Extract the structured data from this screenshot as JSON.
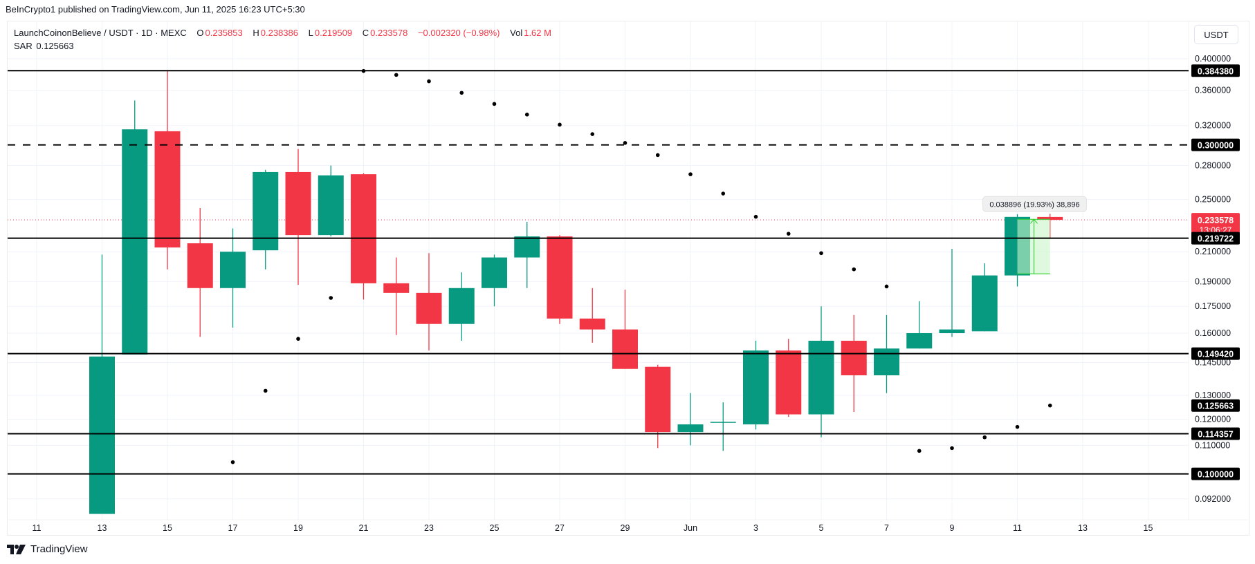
{
  "header": {
    "published": "BeInCrypto1 published on TradingView.com, Jun 11, 2025 16:23 UTC+5:30"
  },
  "legend": {
    "symbol": "LaunchCoinonBelieve / USDT · 1D · MEXC",
    "open_label": "O",
    "open": "0.235853",
    "high_label": "H",
    "high": "0.238386",
    "low_label": "L",
    "low": "0.219509",
    "close_label": "C",
    "close": "0.233578",
    "change": "−0.002320 (−0.98%)",
    "vol_label": "Vol",
    "vol": "1.62 M",
    "indicator_name": "SAR",
    "indicator_value": "0.125663"
  },
  "currency_button": "USDT",
  "measure_tooltip": "0.038896 (19.93%) 38,896",
  "footer": {
    "brand": "TradingView"
  },
  "colors": {
    "up": "#089981",
    "down": "#f23645",
    "level_line": "#000000",
    "grid": "#f0f3fa",
    "measure_fill": "#c8f5c8",
    "measure_line": "#22cc22"
  },
  "chart_data": {
    "type": "candlestick",
    "title": "LaunchCoinonBelieve / USDT · 1D · MEXC",
    "xlabel": "",
    "ylabel": "USDT",
    "y_scale": "log",
    "ylim": [
      0.086,
      0.41
    ],
    "x_tick_labels": [
      "11",
      "13",
      "15",
      "17",
      "19",
      "21",
      "23",
      "25",
      "27",
      "29",
      "Jun",
      "3",
      "5",
      "7",
      "9",
      "11",
      "13",
      "15"
    ],
    "y_tick_labels": [
      "0.400000",
      "0.360000",
      "0.320000",
      "0.280000",
      "0.250000",
      "0.210000",
      "0.190000",
      "0.175000",
      "0.160000",
      "0.145000",
      "0.130000",
      "0.120000",
      "0.110000",
      "0.092000"
    ],
    "candles": [
      {
        "date": "May 13",
        "open": 0.0875,
        "high": 0.208,
        "low": 0.0875,
        "close": 0.148
      },
      {
        "date": "May 14",
        "open": 0.149,
        "high": 0.348,
        "low": 0.149,
        "close": 0.316
      },
      {
        "date": "May 15",
        "open": 0.314,
        "high": 0.384,
        "low": 0.198,
        "close": 0.213
      },
      {
        "date": "May 16",
        "open": 0.216,
        "high": 0.243,
        "low": 0.158,
        "close": 0.186
      },
      {
        "date": "May 17",
        "open": 0.186,
        "high": 0.227,
        "low": 0.163,
        "close": 0.21
      },
      {
        "date": "May 18",
        "open": 0.211,
        "high": 0.276,
        "low": 0.198,
        "close": 0.274
      },
      {
        "date": "May 19",
        "open": 0.274,
        "high": 0.296,
        "low": 0.188,
        "close": 0.222
      },
      {
        "date": "May 20",
        "open": 0.222,
        "high": 0.28,
        "low": 0.221,
        "close": 0.271
      },
      {
        "date": "May 21",
        "open": 0.272,
        "high": 0.273,
        "low": 0.179,
        "close": 0.189
      },
      {
        "date": "May 22",
        "open": 0.189,
        "high": 0.206,
        "low": 0.159,
        "close": 0.183
      },
      {
        "date": "May 23",
        "open": 0.183,
        "high": 0.209,
        "low": 0.151,
        "close": 0.165
      },
      {
        "date": "May 24",
        "open": 0.165,
        "high": 0.196,
        "low": 0.156,
        "close": 0.186
      },
      {
        "date": "May 25",
        "open": 0.186,
        "high": 0.208,
        "low": 0.175,
        "close": 0.206
      },
      {
        "date": "May 26",
        "open": 0.206,
        "high": 0.232,
        "low": 0.186,
        "close": 0.221
      },
      {
        "date": "May 27",
        "open": 0.221,
        "high": 0.222,
        "low": 0.165,
        "close": 0.168
      },
      {
        "date": "May 28",
        "open": 0.168,
        "high": 0.186,
        "low": 0.155,
        "close": 0.162
      },
      {
        "date": "May 29",
        "open": 0.162,
        "high": 0.185,
        "low": 0.142,
        "close": 0.142
      },
      {
        "date": "May 30",
        "open": 0.143,
        "high": 0.144,
        "low": 0.109,
        "close": 0.115
      },
      {
        "date": "May 31",
        "open": 0.115,
        "high": 0.131,
        "low": 0.11,
        "close": 0.118
      },
      {
        "date": "Jun 1",
        "open": 0.119,
        "high": 0.127,
        "low": 0.108,
        "close": 0.119
      },
      {
        "date": "Jun 2",
        "open": 0.118,
        "high": 0.156,
        "low": 0.116,
        "close": 0.151
      },
      {
        "date": "Jun 3",
        "open": 0.151,
        "high": 0.157,
        "low": 0.121,
        "close": 0.122
      },
      {
        "date": "Jun 4",
        "open": 0.122,
        "high": 0.175,
        "low": 0.113,
        "close": 0.156
      },
      {
        "date": "Jun 5",
        "open": 0.156,
        "high": 0.17,
        "low": 0.123,
        "close": 0.139
      },
      {
        "date": "Jun 6",
        "open": 0.139,
        "high": 0.17,
        "low": 0.131,
        "close": 0.152
      },
      {
        "date": "Jun 7",
        "open": 0.152,
        "high": 0.178,
        "low": 0.152,
        "close": 0.16
      },
      {
        "date": "Jun 8",
        "open": 0.16,
        "high": 0.212,
        "low": 0.158,
        "close": 0.162
      },
      {
        "date": "Jun 9",
        "open": 0.161,
        "high": 0.202,
        "low": 0.161,
        "close": 0.194
      },
      {
        "date": "Jun 10",
        "open": 0.194,
        "high": 0.238,
        "low": 0.187,
        "close": 0.2359
      },
      {
        "date": "Jun 11",
        "open": 0.235853,
        "high": 0.238386,
        "low": 0.219509,
        "close": 0.233578
      }
    ],
    "sar": [
      {
        "date": "May 17",
        "value": 0.104
      },
      {
        "date": "May 18",
        "value": 0.132
      },
      {
        "date": "May 19",
        "value": 0.157
      },
      {
        "date": "May 20",
        "value": 0.18
      },
      {
        "date": "May 21",
        "value": 0.384
      },
      {
        "date": "May 22",
        "value": 0.379
      },
      {
        "date": "May 23",
        "value": 0.371
      },
      {
        "date": "May 24",
        "value": 0.357
      },
      {
        "date": "May 25",
        "value": 0.344
      },
      {
        "date": "May 26",
        "value": 0.332
      },
      {
        "date": "May 27",
        "value": 0.321
      },
      {
        "date": "May 28",
        "value": 0.311
      },
      {
        "date": "May 29",
        "value": 0.302
      },
      {
        "date": "May 30",
        "value": 0.29
      },
      {
        "date": "May 31",
        "value": 0.272
      },
      {
        "date": "Jun 1",
        "value": 0.255
      },
      {
        "date": "Jun 2",
        "value": 0.236
      },
      {
        "date": "Jun 3",
        "value": 0.223
      },
      {
        "date": "Jun 4",
        "value": 0.209
      },
      {
        "date": "Jun 5",
        "value": 0.198
      },
      {
        "date": "Jun 6",
        "value": 0.187
      },
      {
        "date": "Jun 7",
        "value": 0.108
      },
      {
        "date": "Jun 8",
        "value": 0.109
      },
      {
        "date": "Jun 9",
        "value": 0.113
      },
      {
        "date": "Jun 10",
        "value": 0.117
      },
      {
        "date": "Jun 11",
        "value": 0.125663
      }
    ],
    "horizontal_levels": [
      {
        "value": 0.38438,
        "label": "0.384380",
        "style": "solid"
      },
      {
        "value": 0.3,
        "label": "0.300000",
        "style": "dashed"
      },
      {
        "value": 0.219722,
        "label": "0.219722",
        "style": "solid"
      },
      {
        "value": 0.14942,
        "label": "0.149420",
        "style": "solid"
      },
      {
        "value": 0.114357,
        "label": "0.114357",
        "style": "solid"
      },
      {
        "value": 0.1,
        "label": "0.100000",
        "style": "solid"
      }
    ],
    "current_price": {
      "value": 0.233578,
      "label": "0.233578",
      "countdown": "13:06:27"
    },
    "sar_label": {
      "value": 0.125663,
      "label": "0.125663"
    },
    "measure": {
      "from": 0.1951,
      "to": 0.234,
      "text": "0.038896 (19.93%) 38,896"
    }
  }
}
